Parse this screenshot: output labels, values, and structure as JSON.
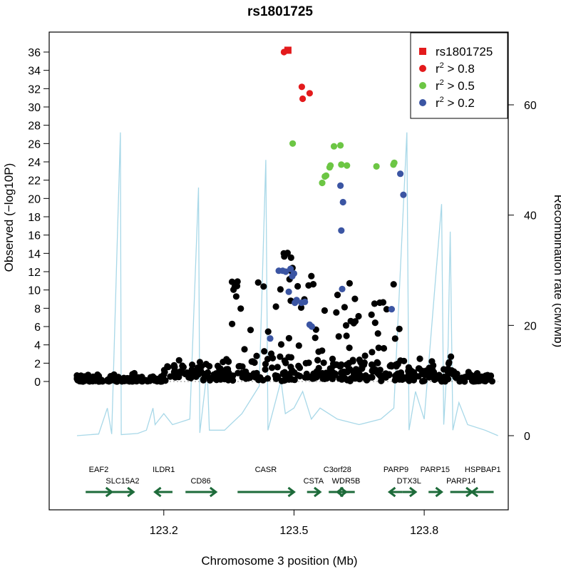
{
  "chart_data": {
    "type": "scatter",
    "title": "rs1801725",
    "xlabel": "Chromosome 3 position (Mb)",
    "ylabel": "Observed (−log10P)",
    "y2label": "Recombination rate (cM/Mb)",
    "xlim": [
      122.98,
      123.98
    ],
    "ylim": [
      0,
      37
    ],
    "y2lim": [
      0,
      70
    ],
    "xticks": [
      "123.2",
      "123.5",
      "123.8"
    ],
    "yticks": [
      "0",
      "2",
      "4",
      "6",
      "8",
      "10",
      "12",
      "14",
      "16",
      "18",
      "20",
      "22",
      "24",
      "26",
      "28",
      "30",
      "32",
      "34",
      "36"
    ],
    "y2ticks": [
      "0",
      "20",
      "40",
      "60"
    ],
    "legend": {
      "position": "top-right",
      "entries": [
        {
          "label": "rs1801725",
          "sup": "",
          "rest": "",
          "color": "#e31a1c",
          "marker": "square"
        },
        {
          "label": "r",
          "sup": "2",
          "rest": " > 0.8",
          "color": "#e31a1c",
          "marker": "circle"
        },
        {
          "label": "r",
          "sup": "2",
          "rest": " > 0.5",
          "color": "#6cc644",
          "marker": "circle"
        },
        {
          "label": "r",
          "sup": "2",
          "rest": " > 0.2",
          "color": "#3b55a3",
          "marker": "circle"
        }
      ]
    },
    "colors": {
      "lead": "#e31a1c",
      "high": "#e31a1c",
      "mid": "#6cc644",
      "low": "#3b55a3",
      "other": "#000000",
      "recomb": "#a8d8e8",
      "gene": "#1e6b3a"
    },
    "series": [
      {
        "name": "rs1801725",
        "color": "#e31a1c",
        "marker": "square",
        "points": [
          [
            123.486,
            36.2
          ]
        ]
      },
      {
        "name": "r² > 0.8",
        "color": "#e31a1c",
        "marker": "circle",
        "points": [
          [
            123.477,
            36.0
          ],
          [
            123.518,
            32.2
          ],
          [
            123.52,
            30.9
          ],
          [
            123.536,
            31.5
          ]
        ]
      },
      {
        "name": "r² > 0.5",
        "color": "#6cc644",
        "marker": "circle",
        "points": [
          [
            123.497,
            26.0
          ],
          [
            123.565,
            21.7
          ],
          [
            123.571,
            22.4
          ],
          [
            123.574,
            22.5
          ],
          [
            123.582,
            23.4
          ],
          [
            123.584,
            23.6
          ],
          [
            123.592,
            25.7
          ],
          [
            123.607,
            25.8
          ],
          [
            123.609,
            23.7
          ],
          [
            123.622,
            23.6
          ],
          [
            123.69,
            23.5
          ],
          [
            123.729,
            23.7
          ],
          [
            123.731,
            23.9
          ]
        ]
      },
      {
        "name": "r² > 0.2",
        "color": "#3b55a3",
        "marker": "circle",
        "points": [
          [
            123.445,
            4.7
          ],
          [
            123.465,
            12.1
          ],
          [
            123.474,
            12.1
          ],
          [
            123.481,
            12.0
          ],
          [
            123.488,
            9.8
          ],
          [
            123.492,
            12.3
          ],
          [
            123.496,
            11.5
          ],
          [
            123.5,
            11.8
          ],
          [
            123.502,
            8.6
          ],
          [
            123.506,
            8.9
          ],
          [
            123.517,
            8.6
          ],
          [
            123.525,
            8.7
          ],
          [
            123.536,
            6.2
          ],
          [
            123.541,
            6.0
          ],
          [
            123.607,
            21.4
          ],
          [
            123.613,
            19.6
          ],
          [
            123.609,
            16.5
          ],
          [
            123.611,
            10.1
          ],
          [
            123.725,
            7.9
          ],
          [
            123.745,
            22.7
          ],
          [
            123.752,
            20.4
          ]
        ]
      },
      {
        "name": "other",
        "color": "#000000",
        "marker": "circle",
        "points": []
      }
    ],
    "recombination": [
      [
        123.0,
        0
      ],
      [
        123.05,
        0.3
      ],
      [
        123.07,
        5
      ],
      [
        123.08,
        0.3
      ],
      [
        123.1,
        55
      ],
      [
        123.102,
        0.2
      ],
      [
        123.14,
        0.4
      ],
      [
        123.16,
        1
      ],
      [
        123.175,
        5
      ],
      [
        123.18,
        2
      ],
      [
        123.2,
        4
      ],
      [
        123.22,
        2
      ],
      [
        123.26,
        3
      ],
      [
        123.28,
        45
      ],
      [
        123.283,
        0.5
      ],
      [
        123.3,
        12
      ],
      [
        123.305,
        1
      ],
      [
        123.34,
        1
      ],
      [
        123.38,
        4
      ],
      [
        123.42,
        9
      ],
      [
        123.435,
        50
      ],
      [
        123.44,
        1
      ],
      [
        123.47,
        10
      ],
      [
        123.48,
        4
      ],
      [
        123.5,
        5
      ],
      [
        123.52,
        8
      ],
      [
        123.54,
        3
      ],
      [
        123.56,
        5
      ],
      [
        123.6,
        3
      ],
      [
        123.65,
        2
      ],
      [
        123.7,
        3
      ],
      [
        123.73,
        5
      ],
      [
        123.76,
        55
      ],
      [
        123.765,
        1
      ],
      [
        123.78,
        8
      ],
      [
        123.8,
        3
      ],
      [
        123.84,
        42
      ],
      [
        123.845,
        2
      ],
      [
        123.855,
        16
      ],
      [
        123.86,
        37
      ],
      [
        123.866,
        1
      ],
      [
        123.88,
        6
      ],
      [
        123.9,
        2
      ],
      [
        123.94,
        1
      ],
      [
        123.97,
        0
      ]
    ],
    "genes": [
      {
        "name": "EAF2",
        "start": 123.02,
        "end": 123.08,
        "strand": "+",
        "row": 1,
        "label_row": 0
      },
      {
        "name": "SLC15A2",
        "start": 123.08,
        "end": 123.13,
        "strand": "+",
        "row": 1,
        "label_row": 1
      },
      {
        "name": "ILDR1",
        "start": 123.18,
        "end": 123.22,
        "strand": "-",
        "row": 1,
        "label_row": 0
      },
      {
        "name": "CD86",
        "start": 123.25,
        "end": 123.32,
        "strand": "+",
        "row": 1,
        "label_row": 1
      },
      {
        "name": "CASR",
        "start": 123.37,
        "end": 123.5,
        "strand": "+",
        "row": 1,
        "label_row": 0
      },
      {
        "name": "CSTA",
        "start": 123.53,
        "end": 123.56,
        "strand": "+",
        "row": 1,
        "label_row": 1
      },
      {
        "name": "C3orf28",
        "start": 123.58,
        "end": 123.62,
        "strand": "+",
        "row": 1,
        "label_row": 0
      },
      {
        "name": "WDR5B",
        "start": 123.6,
        "end": 123.64,
        "strand": "-",
        "row": 1,
        "label_row": 1
      },
      {
        "name": "PARP9",
        "start": 123.72,
        "end": 123.75,
        "strand": "-",
        "row": 1,
        "label_row": 0
      },
      {
        "name": "DTX3L",
        "start": 123.75,
        "end": 123.78,
        "strand": "+",
        "row": 1,
        "label_row": 1
      },
      {
        "name": "PARP15",
        "start": 123.81,
        "end": 123.84,
        "strand": "+",
        "row": 1,
        "label_row": 0
      },
      {
        "name": "PARP14",
        "start": 123.86,
        "end": 123.91,
        "strand": "+",
        "row": 1,
        "label_row": 1
      },
      {
        "name": "HSPBAP1",
        "start": 123.91,
        "end": 123.96,
        "strand": "-",
        "row": 1,
        "label_row": 0
      }
    ]
  }
}
